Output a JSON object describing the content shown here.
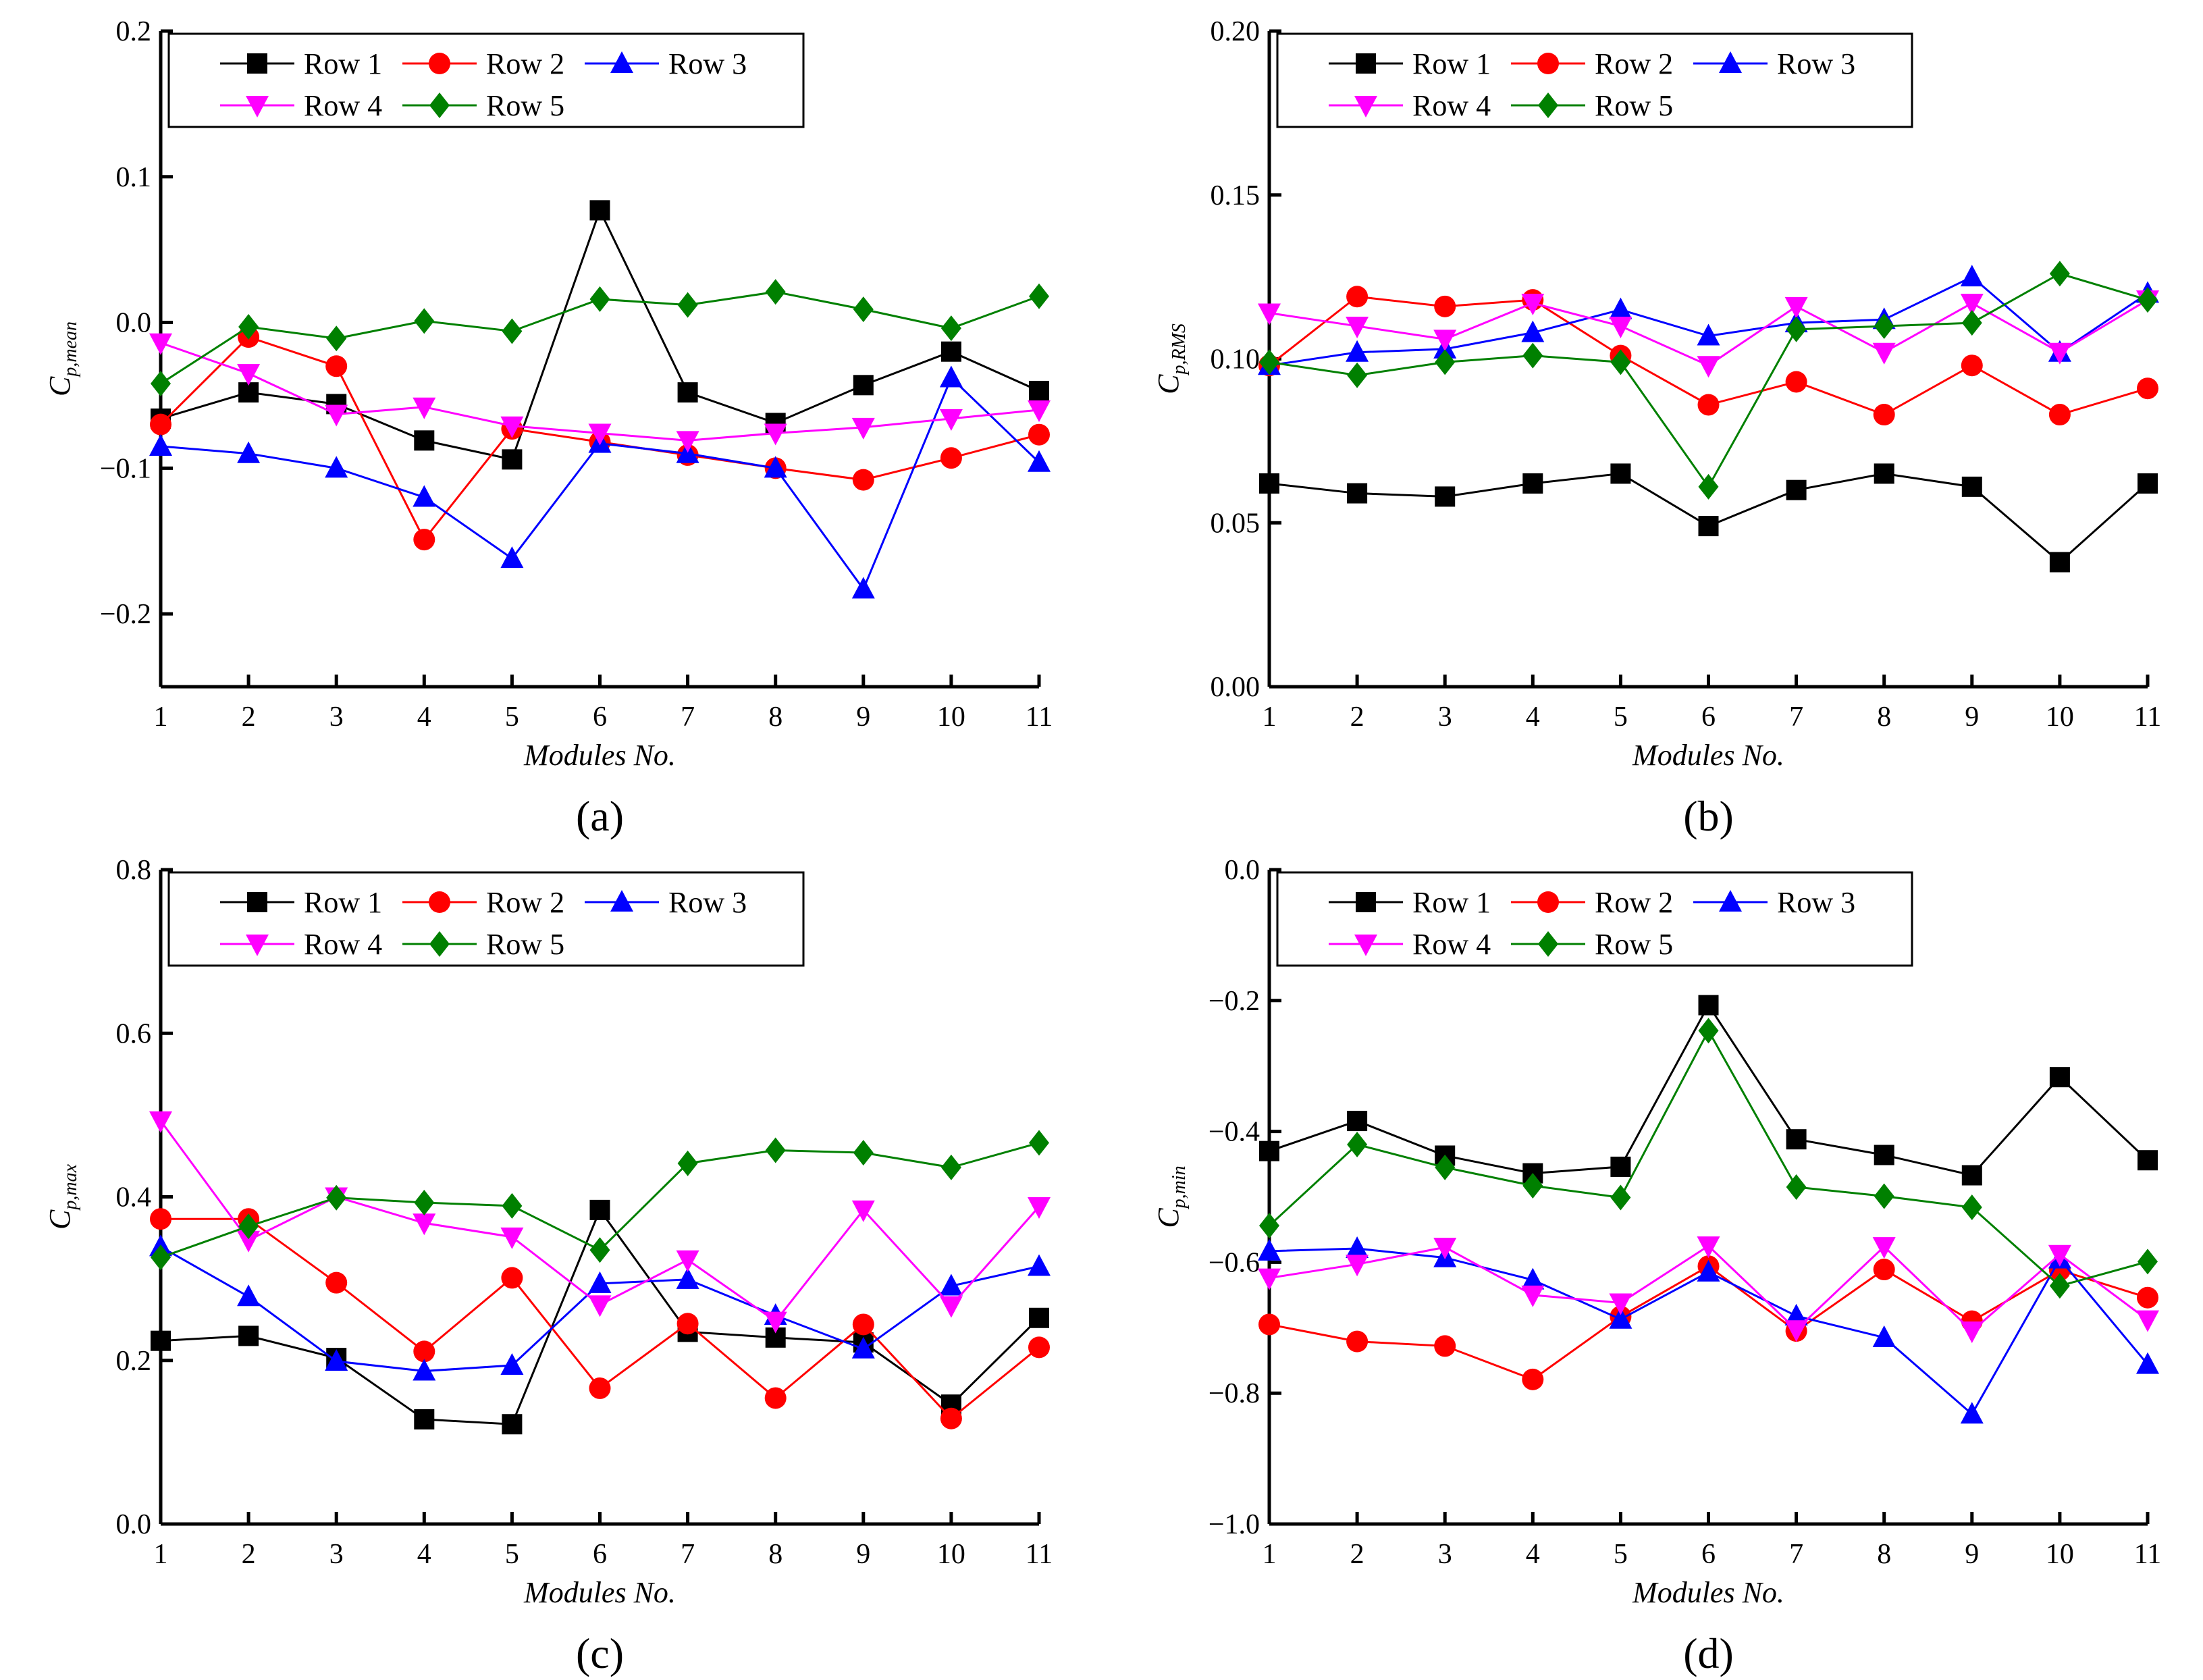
{
  "colors": {
    "Row 1": "#000000",
    "Row 2": "#ff0000",
    "Row 3": "#0000ff",
    "Row 4": "#ff00ff",
    "Row 5": "#008000"
  },
  "markers": {
    "Row 1": "square",
    "Row 2": "circle",
    "Row 3": "triangle-up",
    "Row 4": "triangle-down",
    "Row 5": "diamond"
  },
  "chart_data": [
    {
      "type": "line",
      "panel_label": "(a)",
      "xlabel": "Modules No.",
      "ylabel_main": "C",
      "ylabel_sub": "p,mean",
      "x": [
        1,
        2,
        3,
        4,
        5,
        6,
        7,
        8,
        9,
        10,
        11
      ],
      "xlim": [
        1,
        11
      ],
      "ylim": [
        -0.25,
        0.2
      ],
      "yticks": [
        -0.2,
        -0.1,
        0.0,
        0.1,
        0.2
      ],
      "ytick_labels": [
        "−0.2",
        "−0.1",
        "0.0",
        "0.1",
        "0.2"
      ],
      "xtick_labels": [
        "1",
        "2",
        "3",
        "4",
        "5",
        "6",
        "7",
        "8",
        "9",
        "10",
        "11"
      ],
      "legend": "top-left",
      "grid": false,
      "series": [
        {
          "name": "Row 1",
          "values": [
            -0.066,
            -0.048,
            -0.056,
            -0.081,
            -0.094,
            0.077,
            -0.048,
            -0.069,
            -0.043,
            -0.02,
            -0.047
          ]
        },
        {
          "name": "Row 2",
          "values": [
            -0.07,
            -0.01,
            -0.03,
            -0.149,
            -0.073,
            -0.082,
            -0.091,
            -0.1,
            -0.108,
            -0.093,
            -0.077
          ]
        },
        {
          "name": "Row 3",
          "values": [
            -0.085,
            -0.09,
            -0.1,
            -0.12,
            -0.162,
            -0.083,
            -0.09,
            -0.1,
            -0.183,
            -0.038,
            -0.096
          ]
        },
        {
          "name": "Row 4",
          "values": [
            -0.014,
            -0.035,
            -0.063,
            -0.058,
            -0.071,
            -0.076,
            -0.081,
            -0.076,
            -0.072,
            -0.066,
            -0.06
          ]
        },
        {
          "name": "Row 5",
          "values": [
            -0.042,
            -0.003,
            -0.011,
            0.001,
            -0.006,
            0.016,
            0.012,
            0.021,
            0.009,
            -0.004,
            0.018
          ]
        }
      ]
    },
    {
      "type": "line",
      "panel_label": "(b)",
      "xlabel": "Modules No.",
      "ylabel_main": "C",
      "ylabel_sub": "p,RMS",
      "x": [
        1,
        2,
        3,
        4,
        5,
        6,
        7,
        8,
        9,
        10,
        11
      ],
      "xlim": [
        1,
        11
      ],
      "ylim": [
        0,
        0.2
      ],
      "yticks": [
        0,
        0.05,
        0.1,
        0.15,
        0.2
      ],
      "ytick_labels": [
        "0.00",
        "0.05",
        "0.10",
        "0.15",
        "0.20"
      ],
      "xtick_labels": [
        "1",
        "2",
        "3",
        "4",
        "5",
        "6",
        "7",
        "8",
        "9",
        "10",
        "11"
      ],
      "legend": "top-left",
      "grid": false,
      "series": [
        {
          "name": "Row 1",
          "values": [
            0.062,
            0.059,
            0.058,
            0.062,
            0.065,
            0.049,
            0.06,
            0.065,
            0.061,
            0.038,
            0.062
          ]
        },
        {
          "name": "Row 2",
          "values": [
            0.098,
            0.119,
            0.116,
            0.118,
            0.101,
            0.086,
            0.093,
            0.083,
            0.098,
            0.083,
            0.091
          ]
        },
        {
          "name": "Row 3",
          "values": [
            0.098,
            0.102,
            0.103,
            0.108,
            0.115,
            0.107,
            0.111,
            0.112,
            0.125,
            0.102,
            0.12
          ]
        },
        {
          "name": "Row 4",
          "values": [
            0.114,
            0.11,
            0.106,
            0.117,
            0.11,
            0.098,
            0.116,
            0.102,
            0.117,
            0.102,
            0.118
          ]
        },
        {
          "name": "Row 5",
          "values": [
            0.099,
            0.095,
            0.099,
            0.101,
            0.099,
            0.061,
            0.109,
            0.11,
            0.111,
            0.126,
            0.118
          ]
        }
      ]
    },
    {
      "type": "line",
      "panel_label": "(c)",
      "xlabel": "Modules No.",
      "ylabel_main": "C",
      "ylabel_sub": "p,max",
      "x": [
        1,
        2,
        3,
        4,
        5,
        6,
        7,
        8,
        9,
        10,
        11
      ],
      "xlim": [
        1,
        11
      ],
      "ylim": [
        0,
        0.8
      ],
      "yticks": [
        0,
        0.2,
        0.4,
        0.6,
        0.8
      ],
      "ytick_labels": [
        "0.0",
        "0.2",
        "0.4",
        "0.6",
        "0.8"
      ],
      "xtick_labels": [
        "1",
        "2",
        "3",
        "4",
        "5",
        "6",
        "7",
        "8",
        "9",
        "10",
        "11"
      ],
      "legend": "top-left",
      "grid": false,
      "series": [
        {
          "name": "Row 1",
          "values": [
            0.224,
            0.23,
            0.203,
            0.128,
            0.122,
            0.384,
            0.235,
            0.228,
            0.222,
            0.146,
            0.252
          ]
        },
        {
          "name": "Row 2",
          "values": [
            0.373,
            0.373,
            0.295,
            0.211,
            0.301,
            0.166,
            0.245,
            0.154,
            0.244,
            0.129,
            0.216
          ]
        },
        {
          "name": "Row 3",
          "values": [
            0.339,
            0.278,
            0.199,
            0.187,
            0.194,
            0.294,
            0.299,
            0.255,
            0.214,
            0.291,
            0.315
          ]
        },
        {
          "name": "Row 4",
          "values": [
            0.493,
            0.347,
            0.4,
            0.368,
            0.351,
            0.268,
            0.323,
            0.248,
            0.384,
            0.267,
            0.388
          ]
        },
        {
          "name": "Row 5",
          "values": [
            0.326,
            0.364,
            0.399,
            0.393,
            0.389,
            0.335,
            0.441,
            0.457,
            0.454,
            0.436,
            0.466
          ]
        }
      ]
    },
    {
      "type": "line",
      "panel_label": "(d)",
      "xlabel": "Modules No.",
      "ylabel_main": "C",
      "ylabel_sub": "p,min",
      "x": [
        1,
        2,
        3,
        4,
        5,
        6,
        7,
        8,
        9,
        10,
        11
      ],
      "xlim": [
        1,
        11
      ],
      "ylim": [
        -1.0,
        0.0
      ],
      "yticks": [
        -1.0,
        -0.8,
        -0.6,
        -0.4,
        -0.2,
        0.0
      ],
      "ytick_labels": [
        "−1.0",
        "−0.8",
        "−0.6",
        "−0.4",
        "−0.2",
        "0.0"
      ],
      "xtick_labels": [
        "1",
        "2",
        "3",
        "4",
        "5",
        "6",
        "7",
        "8",
        "9",
        "10",
        "11"
      ],
      "legend": "top-left",
      "grid": false,
      "series": [
        {
          "name": "Row 1",
          "values": [
            -0.43,
            -0.384,
            -0.437,
            -0.464,
            -0.454,
            -0.207,
            -0.412,
            -0.436,
            -0.467,
            -0.317,
            -0.444
          ]
        },
        {
          "name": "Row 2",
          "values": [
            -0.695,
            -0.721,
            -0.728,
            -0.779,
            -0.683,
            -0.606,
            -0.705,
            -0.611,
            -0.69,
            -0.612,
            -0.654
          ]
        },
        {
          "name": "Row 3",
          "values": [
            -0.583,
            -0.579,
            -0.593,
            -0.627,
            -0.687,
            -0.615,
            -0.682,
            -0.715,
            -0.832,
            -0.595,
            -0.756
          ]
        },
        {
          "name": "Row 4",
          "values": [
            -0.624,
            -0.603,
            -0.577,
            -0.65,
            -0.662,
            -0.575,
            -0.703,
            -0.576,
            -0.705,
            -0.588,
            -0.688
          ]
        },
        {
          "name": "Row 5",
          "values": [
            -0.544,
            -0.42,
            -0.455,
            -0.483,
            -0.501,
            -0.246,
            -0.485,
            -0.499,
            -0.516,
            -0.636,
            -0.599
          ]
        }
      ]
    }
  ]
}
